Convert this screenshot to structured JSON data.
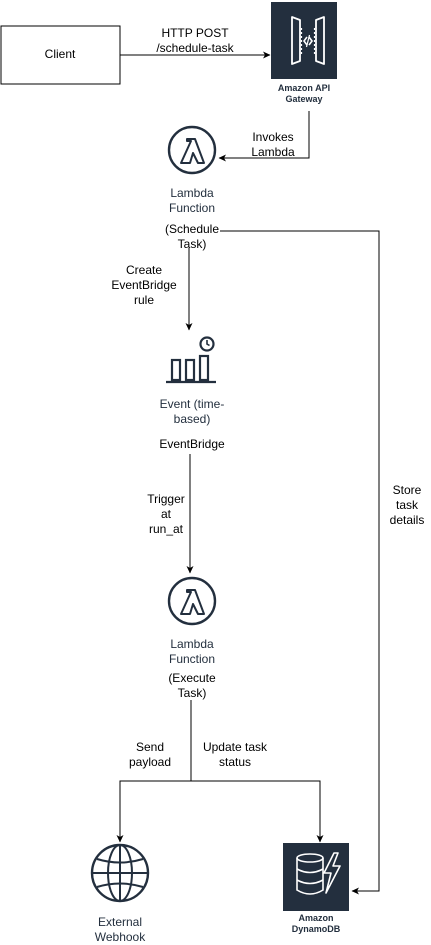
{
  "nodes": {
    "client": {
      "label": "Client"
    },
    "api_gateway": {
      "label_line1": "Amazon API",
      "label_line2": "Gateway",
      "icon": "api-gateway-icon"
    },
    "lambda_schedule": {
      "label_line1": "Lambda",
      "label_line2": "Function",
      "sub_line1": "(Schedule",
      "sub_line2": "Task)",
      "icon": "lambda-icon"
    },
    "eventbridge": {
      "label_line1": "Event (time-",
      "label_line2": "based)",
      "title": "EventBridge",
      "icon": "eventbridge-icon"
    },
    "lambda_execute": {
      "label_line1": "Lambda",
      "label_line2": "Function",
      "sub_line1": "(Execute",
      "sub_line2": "Task)",
      "icon": "lambda-icon"
    },
    "webhook": {
      "label_line1": "External",
      "label_line2": "Webhook",
      "icon": "globe-icon"
    },
    "dynamodb": {
      "label_line1": "Amazon",
      "label_line2": "DynamoDB",
      "icon": "dynamodb-icon"
    }
  },
  "edges": {
    "http_post": {
      "line1": "HTTP POST",
      "line2": "/schedule-task"
    },
    "invokes": {
      "line1": "Invokes",
      "line2": "Lambda"
    },
    "create_rule": {
      "line1": "Create",
      "line2": "EventBridge",
      "line3": "rule"
    },
    "trigger": {
      "line1": "Trigger",
      "line2": "at",
      "line3": "run_at"
    },
    "send_payload": {
      "line1": "Send",
      "line2": "payload"
    },
    "update_status": {
      "line1": "Update task",
      "line2": "status"
    },
    "store_details": {
      "line1": "Store",
      "line2": "task",
      "line3": "details"
    }
  },
  "colors": {
    "aws_dark": "#232f3e",
    "line": "#000000",
    "icon_white": "#ffffff"
  }
}
